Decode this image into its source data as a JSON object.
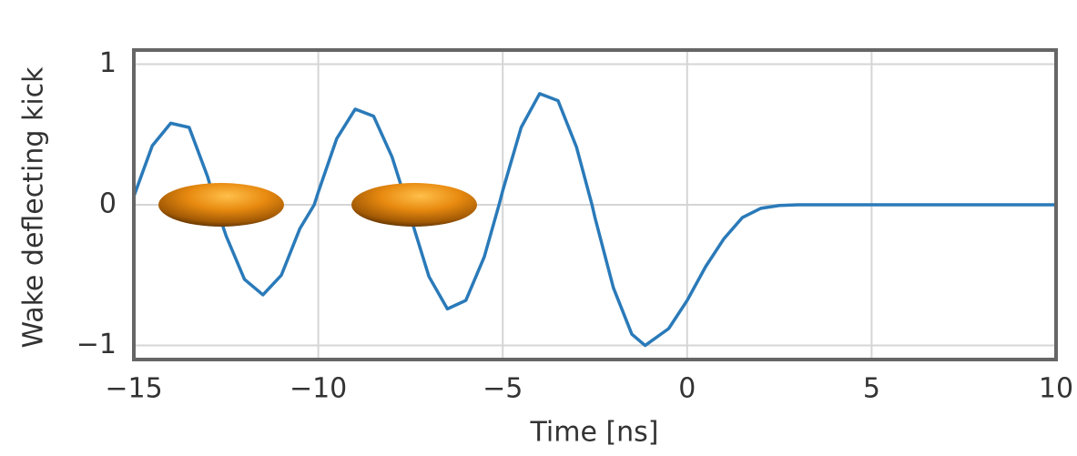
{
  "chart_data": {
    "type": "line",
    "xlabel": "Time [ns]",
    "ylabel": "Wake deflecting kick",
    "x": [
      -15,
      -14.5,
      -14,
      -13.5,
      -13,
      -12.78,
      -12.5,
      -12,
      -11.5,
      -11,
      -10.5,
      -10.11,
      -10,
      -9.5,
      -9,
      -8.5,
      -8,
      -7.59,
      -7.5,
      -7,
      -6.5,
      -6,
      -5.5,
      -5.1,
      -5,
      -4.5,
      -4,
      -3.5,
      -3,
      -2.58,
      -2.5,
      -2,
      -1.5,
      -1.14,
      -0.5,
      0,
      0.5,
      1,
      1.5,
      2,
      2.5,
      3,
      4,
      6,
      8,
      10
    ],
    "series": [
      {
        "name": "wake",
        "color": "#2a7ab9",
        "values": [
          0.06,
          0.42,
          0.58,
          0.55,
          0.2,
          0,
          -0.22,
          -0.53,
          -0.64,
          -0.5,
          -0.17,
          0,
          0.09,
          0.47,
          0.68,
          0.63,
          0.34,
          0,
          -0.086,
          -0.51,
          -0.74,
          -0.68,
          -0.37,
          0,
          0.1,
          0.55,
          0.79,
          0.74,
          0.41,
          0,
          -0.09,
          -0.59,
          -0.92,
          -1.0,
          -0.88,
          -0.68,
          -0.44,
          -0.24,
          -0.09,
          -0.025,
          -0.005,
          0,
          0,
          0,
          0,
          0
        ]
      }
    ],
    "xlim": [
      -15,
      10
    ],
    "ylim": [
      -1.1,
      1.1
    ],
    "xticks": [
      {
        "value": -15,
        "label": "−15"
      },
      {
        "value": -10,
        "label": "−10"
      },
      {
        "value": -5,
        "label": "−5"
      },
      0,
      5,
      10
    ],
    "yticks": [
      {
        "value": -1,
        "label": "−1"
      },
      0,
      1
    ],
    "grid": true
  }
}
